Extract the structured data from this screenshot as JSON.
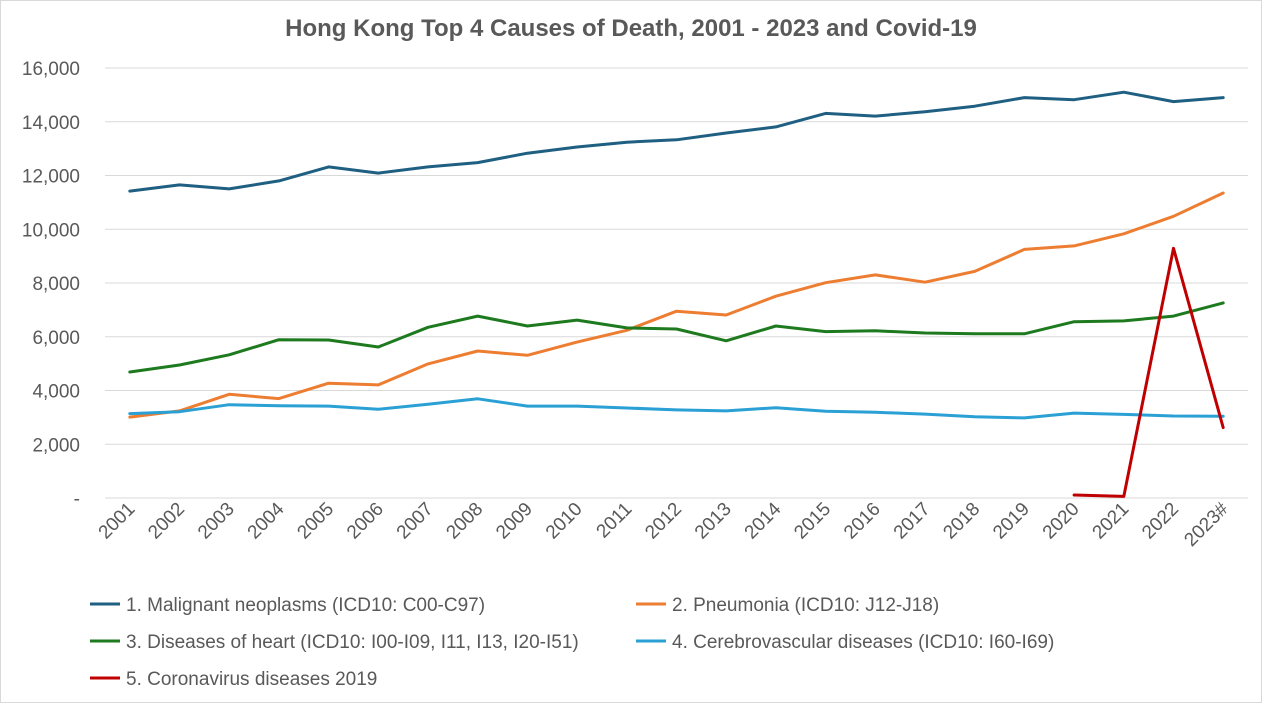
{
  "chart_data": {
    "type": "line",
    "title": "Hong Kong Top 4 Causes of Death, 2001 - 2023 and Covid-19",
    "xlabel": "",
    "ylabel": "",
    "categories": [
      "2001",
      "2002",
      "2003",
      "2004",
      "2005",
      "2006",
      "2007",
      "2008",
      "2009",
      "2010",
      "2011",
      "2012",
      "2013",
      "2014",
      "2015",
      "2016",
      "2017",
      "2018",
      "2019",
      "2020",
      "2021",
      "2022",
      "2023#"
    ],
    "ylim": [
      0,
      16000
    ],
    "yticks": [
      0,
      2000,
      4000,
      6000,
      8000,
      10000,
      12000,
      14000,
      16000
    ],
    "ytick_labels": [
      "-",
      "2,000",
      "4,000",
      "6,000",
      "8,000",
      "10,000",
      "12,000",
      "14,000",
      "16,000"
    ],
    "grid": true,
    "legend_position": "bottom",
    "series": [
      {
        "name": "1. Malignant neoplasms (ICD10: C00-C97)",
        "color": "#1f5f82",
        "values": [
          11420,
          11650,
          11500,
          11800,
          12320,
          12090,
          12320,
          12480,
          12830,
          13060,
          13240,
          13330,
          13580,
          13810,
          14310,
          14210,
          14370,
          14580,
          14900,
          14820,
          15100,
          14750,
          14900
        ]
      },
      {
        "name": "2. Pneumonia (ICD10: J12-J18)",
        "color": "#ed7d31",
        "values": [
          3010,
          3240,
          3860,
          3700,
          4270,
          4210,
          4990,
          5470,
          5310,
          5800,
          6240,
          6950,
          6810,
          7510,
          8010,
          8300,
          8030,
          8430,
          9250,
          9380,
          9830,
          10480,
          11350
        ]
      },
      {
        "name": "3. Diseases of heart (ICD10: I00-I09, I11, I13, I20-I51)",
        "color": "#1e7a1e",
        "values": [
          4690,
          4950,
          5330,
          5890,
          5880,
          5620,
          6350,
          6770,
          6400,
          6620,
          6330,
          6290,
          5850,
          6400,
          6190,
          6220,
          6140,
          6110,
          6110,
          6560,
          6590,
          6770,
          7260
        ]
      },
      {
        "name": "4. Cerebrovascular diseases (ICD10: I60-I69)",
        "color": "#2aa0d4",
        "values": [
          3140,
          3210,
          3470,
          3430,
          3420,
          3300,
          3490,
          3690,
          3420,
          3420,
          3350,
          3280,
          3240,
          3360,
          3230,
          3190,
          3120,
          3020,
          2980,
          3160,
          3110,
          3050,
          3040
        ]
      },
      {
        "name": "5. Coronavirus diseases 2019",
        "color": "#c00000",
        "values": [
          null,
          null,
          null,
          null,
          null,
          null,
          null,
          null,
          null,
          null,
          null,
          null,
          null,
          null,
          null,
          null,
          null,
          null,
          null,
          110,
          60,
          9290,
          2620
        ]
      }
    ]
  }
}
